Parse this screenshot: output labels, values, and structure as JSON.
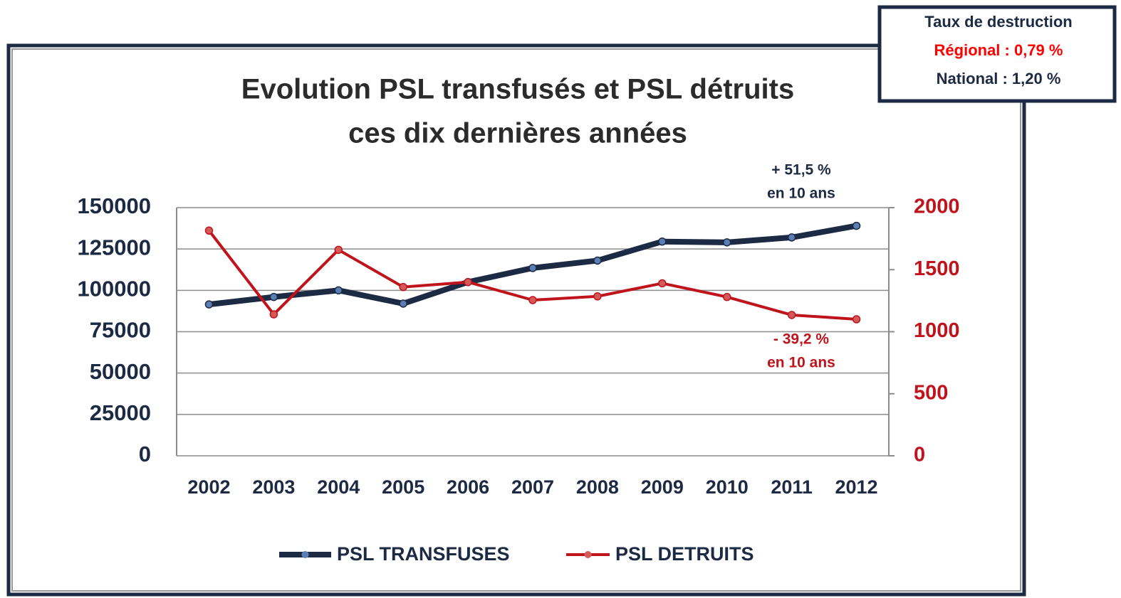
{
  "chart_data": {
    "type": "line",
    "title": [
      "Evolution PSL transfusés et PSL détruits",
      "ces dix dernières années"
    ],
    "categories": [
      "2002",
      "2003",
      "2004",
      "2005",
      "2006",
      "2007",
      "2008",
      "2009",
      "2010",
      "2011",
      "2012"
    ],
    "series": [
      {
        "name": "PSL TRANSFUSES",
        "color": "#1c2a44",
        "values": [
          91500,
          96000,
          100000,
          92000,
          105000,
          113500,
          118000,
          129500,
          129000,
          132000,
          139000
        ]
      },
      {
        "name": "PSL DETRUITS",
        "color": "#c0141c",
        "axis": "y2",
        "values": [
          1815,
          1140,
          1660,
          1360,
          1400,
          1255,
          1285,
          1390,
          1280,
          1135,
          1100
        ]
      }
    ],
    "ylim": [
      0,
      150000
    ],
    "yticks": [
      0,
      25000,
      50000,
      75000,
      100000,
      125000,
      150000
    ],
    "y2lim": [
      0,
      2000
    ],
    "y2ticks": [
      0,
      500,
      1000,
      1500,
      2000
    ],
    "grid": true,
    "legend": "bottom",
    "annotations": [
      {
        "lines": [
          "+ 51,5 %",
          "en 10 ans"
        ],
        "color": "#1c2a44"
      },
      {
        "lines": [
          "- 39,2 %",
          "en 10 ans"
        ],
        "color": "#c0141c"
      }
    ],
    "info_box": {
      "title": "Taux de destruction",
      "lines": [
        {
          "text": "Régional : 0,79 %",
          "color": "#ff0000"
        },
        {
          "text": "National : 1,20 %",
          "color": "#1c2a44"
        }
      ]
    }
  }
}
